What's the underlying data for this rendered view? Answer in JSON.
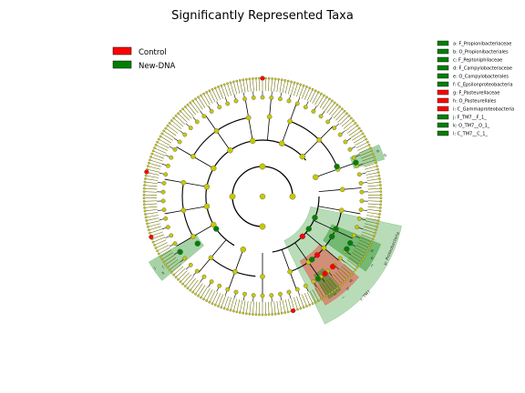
{
  "chart_data": {
    "type": "cladogram",
    "title": "Significantly Represented Taxa",
    "groups": [
      {
        "name": "Control",
        "color": "#ff0000"
      },
      {
        "name": "New-DNA",
        "color": "#008000"
      }
    ],
    "taxa": [
      {
        "key": "a",
        "label": "a: F_Propionibacteriaceae",
        "group": "New-DNA"
      },
      {
        "key": "b",
        "label": "b: O_Propionibacteriales",
        "group": "New-DNA"
      },
      {
        "key": "c",
        "label": "c: F_Peptoniphilaceae",
        "group": "New-DNA"
      },
      {
        "key": "d",
        "label": "d: F_Campylobacteraceae",
        "group": "New-DNA"
      },
      {
        "key": "e",
        "label": "e: O_Campylobacterales",
        "group": "New-DNA"
      },
      {
        "key": "f",
        "label": "f: C_Epsilonproteobacteria",
        "group": "New-DNA"
      },
      {
        "key": "g",
        "label": "g: F_Pasteurellaceae",
        "group": "Control"
      },
      {
        "key": "h",
        "label": "h: O_Pasteurellales",
        "group": "Control"
      },
      {
        "key": "i",
        "label": "i: C_Gammaproteobacteria",
        "group": "Control"
      },
      {
        "key": "j",
        "label": "j: F_TM7__F_1_",
        "group": "New-DNA"
      },
      {
        "key": "k",
        "label": "k: O_TM7__O_1_",
        "group": "New-DNA"
      },
      {
        "key": "l",
        "label": "l: C_TM7__C_1_",
        "group": "New-DNA"
      }
    ],
    "clade_labels": [
      "p: Proteobacteria",
      "r: TM7"
    ],
    "node_color": "#c8c800"
  }
}
